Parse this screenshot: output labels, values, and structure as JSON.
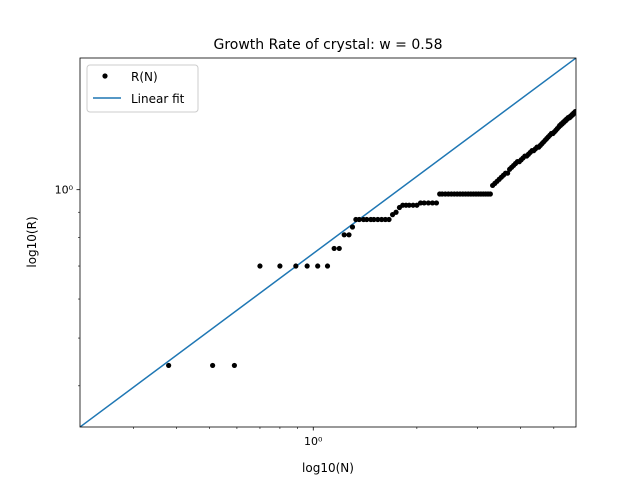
{
  "chart_data": {
    "type": "scatter",
    "title": "Growth Rate of crystal: w = 0.58",
    "xlabel": "log10(N)",
    "ylabel": "log10(R)",
    "xscale": "log",
    "yscale": "log",
    "xlim": [
      0.21,
      5.8
    ],
    "ylim": [
      0.33,
      1.85
    ],
    "grid": false,
    "legend_position": "upper left",
    "x_major_ticks": [
      {
        "value": 1,
        "label": "10⁰"
      }
    ],
    "y_major_ticks": [
      {
        "value": 1,
        "label": "10⁰"
      }
    ],
    "x_minor_ticks": [
      0.3,
      0.4,
      0.5,
      0.6,
      0.7,
      0.8,
      0.9,
      2,
      3,
      4,
      5
    ],
    "y_minor_ticks": [
      0.4,
      0.5,
      0.6,
      0.7,
      0.8,
      0.9
    ],
    "series": [
      {
        "name": "R(N)",
        "style": "points",
        "color": "#000000",
        "points": [
          [
            0.38,
            0.44
          ],
          [
            0.51,
            0.44
          ],
          [
            0.59,
            0.44
          ],
          [
            0.7,
            0.7
          ],
          [
            0.8,
            0.7
          ],
          [
            0.89,
            0.7
          ],
          [
            0.96,
            0.7
          ],
          [
            1.03,
            0.7
          ],
          [
            1.1,
            0.7
          ],
          [
            1.15,
            0.76
          ],
          [
            1.19,
            0.76
          ],
          [
            1.23,
            0.81
          ],
          [
            1.27,
            0.81
          ],
          [
            1.3,
            0.84
          ],
          [
            1.33,
            0.87
          ],
          [
            1.36,
            0.87
          ],
          [
            1.4,
            0.87
          ],
          [
            1.43,
            0.87
          ],
          [
            1.47,
            0.87
          ],
          [
            1.5,
            0.87
          ],
          [
            1.54,
            0.87
          ],
          [
            1.58,
            0.87
          ],
          [
            1.62,
            0.87
          ],
          [
            1.66,
            0.87
          ],
          [
            1.7,
            0.89
          ],
          [
            1.74,
            0.9
          ],
          [
            1.78,
            0.92
          ],
          [
            1.82,
            0.93
          ],
          [
            1.86,
            0.93
          ],
          [
            1.9,
            0.93
          ],
          [
            1.95,
            0.93
          ],
          [
            2.0,
            0.93
          ],
          [
            2.05,
            0.94
          ],
          [
            2.1,
            0.94
          ],
          [
            2.16,
            0.94
          ],
          [
            2.22,
            0.94
          ],
          [
            2.28,
            0.94
          ],
          [
            2.33,
            0.98
          ],
          [
            2.37,
            0.98
          ],
          [
            2.42,
            0.98
          ],
          [
            2.47,
            0.98
          ],
          [
            2.52,
            0.98
          ],
          [
            2.57,
            0.98
          ],
          [
            2.62,
            0.98
          ],
          [
            2.67,
            0.98
          ],
          [
            2.72,
            0.98
          ],
          [
            2.77,
            0.98
          ],
          [
            2.82,
            0.98
          ],
          [
            2.87,
            0.98
          ],
          [
            2.92,
            0.98
          ],
          [
            2.97,
            0.98
          ],
          [
            3.02,
            0.98
          ],
          [
            3.07,
            0.98
          ],
          [
            3.12,
            0.98
          ],
          [
            3.17,
            0.98
          ],
          [
            3.22,
            0.98
          ],
          [
            3.27,
            0.98
          ],
          [
            3.32,
            1.02
          ],
          [
            3.37,
            1.03
          ],
          [
            3.42,
            1.04
          ],
          [
            3.47,
            1.05
          ],
          [
            3.52,
            1.06
          ],
          [
            3.57,
            1.07
          ],
          [
            3.62,
            1.08
          ],
          [
            3.67,
            1.08
          ],
          [
            3.72,
            1.1
          ],
          [
            3.77,
            1.11
          ],
          [
            3.82,
            1.12
          ],
          [
            3.87,
            1.13
          ],
          [
            3.92,
            1.14
          ],
          [
            3.97,
            1.14
          ],
          [
            4.02,
            1.15
          ],
          [
            4.07,
            1.16
          ],
          [
            4.12,
            1.17
          ],
          [
            4.17,
            1.17
          ],
          [
            4.22,
            1.18
          ],
          [
            4.27,
            1.19
          ],
          [
            4.32,
            1.2
          ],
          [
            4.37,
            1.2
          ],
          [
            4.42,
            1.21
          ],
          [
            4.47,
            1.22
          ],
          [
            4.52,
            1.22
          ],
          [
            4.57,
            1.23
          ],
          [
            4.62,
            1.24
          ],
          [
            4.67,
            1.25
          ],
          [
            4.72,
            1.26
          ],
          [
            4.77,
            1.27
          ],
          [
            4.82,
            1.28
          ],
          [
            4.87,
            1.29
          ],
          [
            4.92,
            1.3
          ],
          [
            4.97,
            1.3
          ],
          [
            5.02,
            1.31
          ],
          [
            5.07,
            1.32
          ],
          [
            5.12,
            1.33
          ],
          [
            5.17,
            1.34
          ],
          [
            5.2,
            1.35
          ],
          [
            5.23,
            1.35
          ],
          [
            5.26,
            1.36
          ],
          [
            5.29,
            1.36
          ],
          [
            5.32,
            1.37
          ],
          [
            5.35,
            1.37
          ],
          [
            5.38,
            1.38
          ],
          [
            5.41,
            1.38
          ],
          [
            5.44,
            1.39
          ],
          [
            5.47,
            1.39
          ],
          [
            5.5,
            1.4
          ],
          [
            5.53,
            1.4
          ],
          [
            5.56,
            1.4
          ],
          [
            5.59,
            1.41
          ],
          [
            5.62,
            1.41
          ],
          [
            5.65,
            1.42
          ],
          [
            5.68,
            1.42
          ],
          [
            5.71,
            1.43
          ],
          [
            5.74,
            1.43
          ],
          [
            5.77,
            1.44
          ],
          [
            5.8,
            1.44
          ]
        ]
      },
      {
        "name": "Linear fit",
        "style": "line",
        "color": "#1f77b4",
        "points": [
          [
            0.21,
            0.33
          ],
          [
            5.8,
            1.85
          ]
        ]
      }
    ]
  }
}
